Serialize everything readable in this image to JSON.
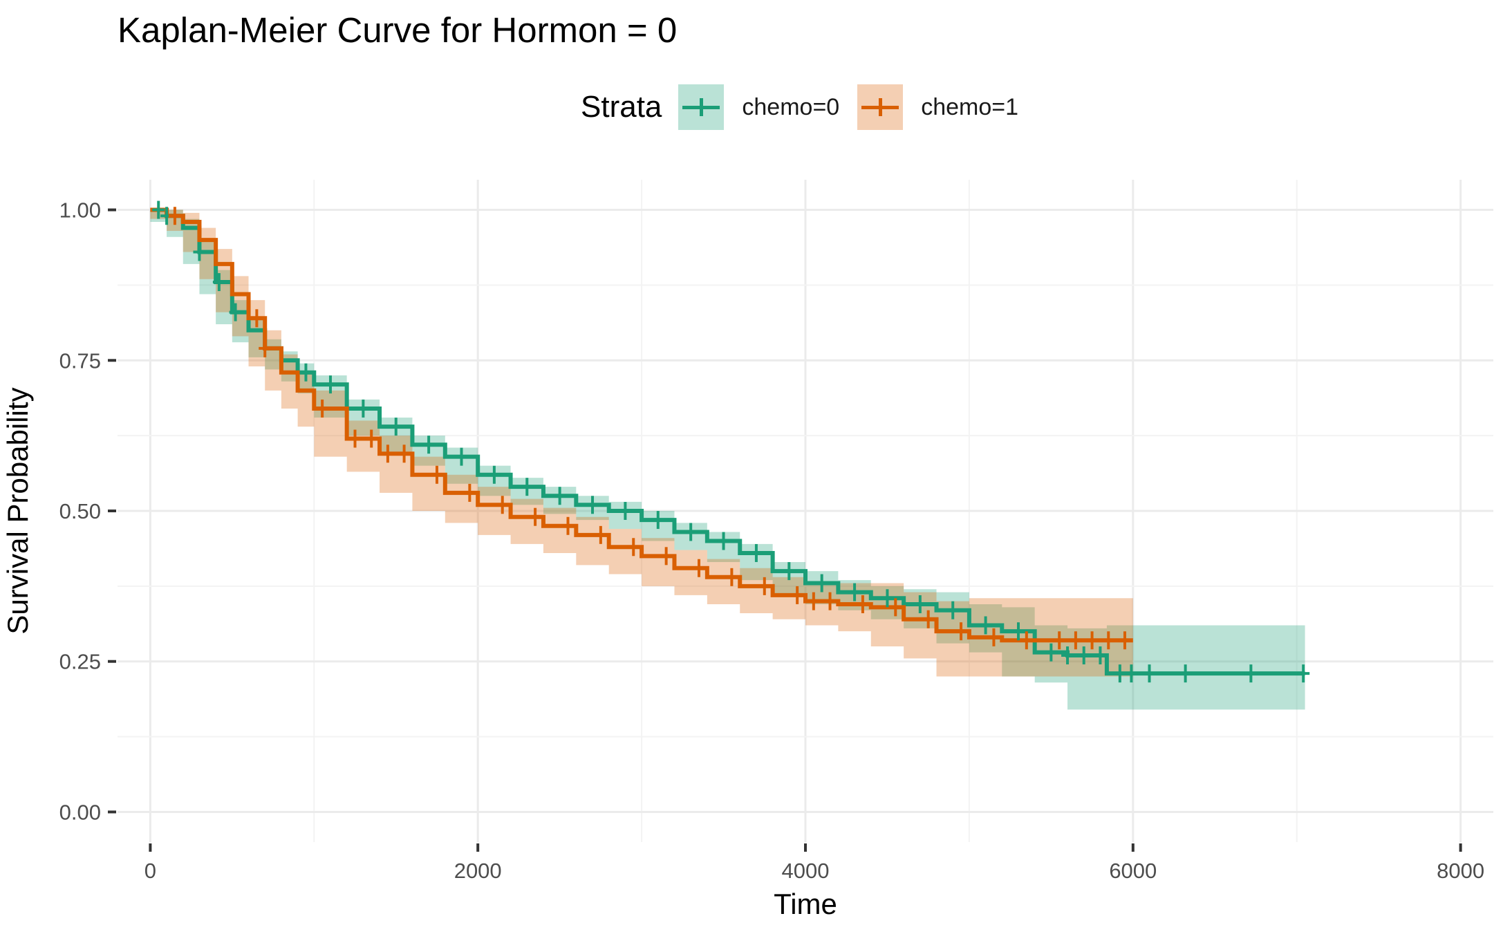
{
  "chart_data": {
    "type": "line",
    "title": "Kaplan-Meier Curve for Hormon = 0",
    "xlabel": "Time",
    "ylabel": "Survival Probability",
    "xlim": [
      -200,
      8200
    ],
    "ylim": [
      -0.05,
      1.05
    ],
    "x_ticks": [
      0,
      2000,
      4000,
      6000,
      8000
    ],
    "x_tick_labels": [
      "0",
      "2000",
      "4000",
      "6000",
      "8000"
    ],
    "y_ticks": [
      0,
      0.25,
      0.5,
      0.75,
      1.0
    ],
    "y_tick_labels": [
      "0.00",
      "0.25",
      "0.50",
      "0.75",
      "1.00"
    ],
    "grid": true,
    "legend": {
      "title": "Strata",
      "placement": "top"
    },
    "series": [
      {
        "name": "chemo=0",
        "color": "#1b9e77",
        "x": [
          0,
          100,
          200,
          300,
          400,
          500,
          600,
          700,
          800,
          900,
          1000,
          1200,
          1400,
          1600,
          1800,
          2000,
          2200,
          2400,
          2600,
          2800,
          3000,
          3200,
          3400,
          3600,
          3800,
          4000,
          4200,
          4400,
          4600,
          4800,
          5000,
          5200,
          5400,
          5600,
          5840,
          6000,
          7050
        ],
        "y": [
          1.0,
          0.99,
          0.97,
          0.93,
          0.88,
          0.83,
          0.8,
          0.77,
          0.75,
          0.73,
          0.71,
          0.67,
          0.64,
          0.61,
          0.59,
          0.56,
          0.54,
          0.525,
          0.51,
          0.5,
          0.485,
          0.465,
          0.45,
          0.43,
          0.4,
          0.38,
          0.365,
          0.355,
          0.345,
          0.335,
          0.31,
          0.3,
          0.265,
          0.26,
          0.23,
          0.23,
          0.23
        ],
        "lower": [
          1.0,
          0.98,
          0.955,
          0.91,
          0.86,
          0.81,
          0.78,
          0.755,
          0.735,
          0.715,
          0.695,
          0.655,
          0.625,
          0.595,
          0.575,
          0.545,
          0.525,
          0.51,
          0.495,
          0.485,
          0.47,
          0.45,
          0.435,
          0.415,
          0.385,
          0.36,
          0.345,
          0.335,
          0.32,
          0.305,
          0.28,
          0.265,
          0.225,
          0.215,
          0.17,
          0.17,
          0.17
        ],
        "upper": [
          1.0,
          1.0,
          0.985,
          0.95,
          0.9,
          0.85,
          0.82,
          0.785,
          0.765,
          0.745,
          0.725,
          0.685,
          0.655,
          0.625,
          0.605,
          0.575,
          0.555,
          0.54,
          0.525,
          0.515,
          0.5,
          0.48,
          0.465,
          0.445,
          0.415,
          0.4,
          0.385,
          0.375,
          0.37,
          0.365,
          0.345,
          0.34,
          0.31,
          0.305,
          0.31,
          0.31,
          0.31
        ],
        "censor_x": [
          50,
          100,
          300,
          420,
          520,
          950,
          1100,
          1300,
          1500,
          1700,
          1900,
          2100,
          2300,
          2500,
          2700,
          2900,
          3100,
          3300,
          3500,
          3700,
          3900,
          4100,
          4300,
          4500,
          4700,
          4900,
          5100,
          5300,
          5500,
          5600,
          5700,
          5800,
          5920,
          5990,
          6100,
          6320,
          6720,
          7040
        ]
      },
      {
        "name": "chemo=1",
        "color": "#d95f02",
        "x": [
          0,
          100,
          200,
          300,
          400,
          500,
          600,
          700,
          800,
          900,
          1000,
          1200,
          1400,
          1600,
          1800,
          2000,
          2200,
          2400,
          2600,
          2800,
          3000,
          3200,
          3400,
          3600,
          3800,
          4000,
          4200,
          4400,
          4600,
          4800,
          5000,
          5200,
          5400,
          5600,
          5800,
          5950,
          6000
        ],
        "y": [
          1.0,
          0.99,
          0.98,
          0.95,
          0.91,
          0.86,
          0.82,
          0.77,
          0.73,
          0.7,
          0.67,
          0.62,
          0.595,
          0.56,
          0.53,
          0.51,
          0.49,
          0.475,
          0.46,
          0.44,
          0.425,
          0.405,
          0.39,
          0.375,
          0.36,
          0.35,
          0.345,
          0.34,
          0.32,
          0.3,
          0.29,
          0.285,
          0.285,
          0.285,
          0.285,
          0.285,
          0.285
        ],
        "lower": [
          1.0,
          0.985,
          0.965,
          0.93,
          0.885,
          0.83,
          0.79,
          0.74,
          0.7,
          0.67,
          0.64,
          0.59,
          0.565,
          0.53,
          0.5,
          0.48,
          0.46,
          0.445,
          0.43,
          0.41,
          0.395,
          0.375,
          0.36,
          0.345,
          0.33,
          0.32,
          0.31,
          0.3,
          0.275,
          0.255,
          0.225,
          0.225,
          0.225,
          0.225,
          0.225,
          0.225,
          0.225
        ],
        "upper": [
          1.0,
          1.0,
          0.995,
          0.97,
          0.935,
          0.89,
          0.85,
          0.8,
          0.76,
          0.73,
          0.7,
          0.65,
          0.625,
          0.59,
          0.56,
          0.54,
          0.52,
          0.505,
          0.49,
          0.47,
          0.455,
          0.435,
          0.42,
          0.405,
          0.39,
          0.38,
          0.38,
          0.38,
          0.365,
          0.35,
          0.355,
          0.355,
          0.355,
          0.355,
          0.355,
          0.355,
          0.355
        ],
        "censor_x": [
          150,
          650,
          700,
          1050,
          1250,
          1350,
          1450,
          1550,
          1750,
          1950,
          2150,
          2350,
          2550,
          2750,
          2950,
          3150,
          3350,
          3550,
          3750,
          3950,
          4050,
          4150,
          4350,
          4550,
          4750,
          4950,
          5150,
          5350,
          5550,
          5650,
          5750,
          5850,
          5950
        ]
      }
    ]
  }
}
